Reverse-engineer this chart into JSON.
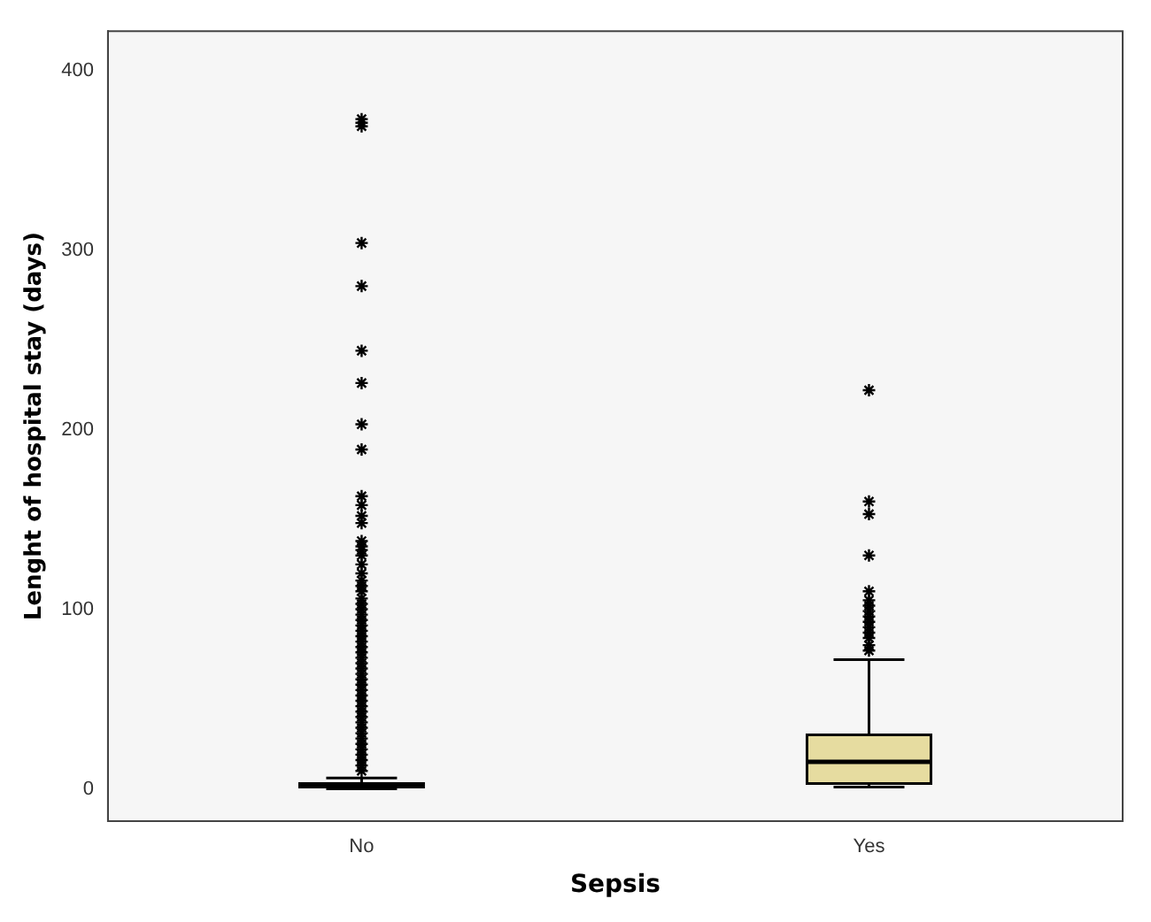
{
  "chart_data": {
    "type": "box",
    "xlabel": "Sepsis",
    "ylabel": "Lenght of hospital stay (days)",
    "categories": [
      "No",
      "Yes"
    ],
    "color": "#e6dca0",
    "marker": "star",
    "grid": false,
    "legend": false,
    "ylim": [
      -18,
      422
    ],
    "yticks": [
      0,
      100,
      200,
      300,
      400
    ],
    "boxes": [
      {
        "low": 0,
        "q1": 1,
        "median": 2,
        "q3": 3,
        "high": 6,
        "outliers": [
          10,
          13,
          16,
          19,
          22,
          25,
          28,
          31,
          34,
          37,
          40,
          43,
          46,
          49,
          52,
          55,
          58,
          61,
          64,
          67,
          70,
          73,
          76,
          79,
          82,
          85,
          88,
          91,
          94,
          97,
          100,
          103,
          106,
          110,
          113,
          116,
          120,
          125,
          130,
          133,
          135,
          138,
          148,
          152,
          158,
          163,
          189,
          203,
          226,
          244,
          280,
          304,
          369,
          371,
          373
        ]
      },
      {
        "low": 1,
        "q1": 3,
        "median": 15,
        "q3": 30,
        "high": 72,
        "outliers": [
          77,
          80,
          84,
          87,
          90,
          93,
          96,
          99,
          102,
          105,
          110,
          130,
          153,
          160,
          222
        ]
      }
    ]
  }
}
